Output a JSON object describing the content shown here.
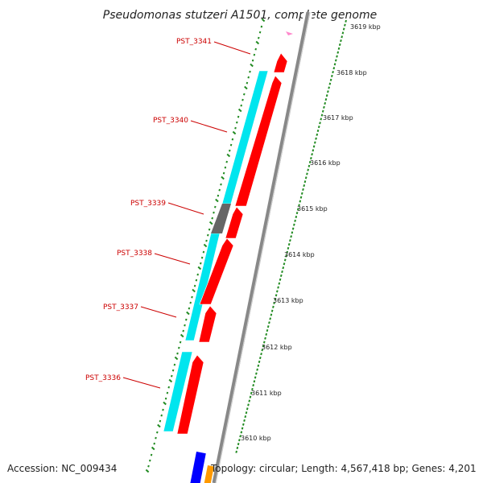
{
  "title": "Pseudomonas stutzeri A1501, complete genome",
  "accession": "Accession: NC_009434",
  "topology": "Topology: circular; Length: 4,567,418 bp; Genes: 4,201",
  "ticks": [
    "3610 kbp",
    "3611 kbp",
    "3612 kbp",
    "3613 kbp",
    "3614 kbp",
    "3615 kbp",
    "3616 kbp",
    "3617 kbp",
    "3618 kbp",
    "3619 kbp"
  ],
  "genes": [
    "PST_3336",
    "PST_3337",
    "PST_3338",
    "PST_3339",
    "PST_3340",
    "PST_3341"
  ],
  "colors": {
    "forward_cds": "#ff0000",
    "cyan_track": "#00e5ee",
    "gray_segment": "#666666",
    "backbone": "#888888",
    "tick_dots": "#228b22",
    "label_red": "#cc0000",
    "blue_feature": "#0000ff",
    "orange_feature": "#ff9900",
    "pink_feature": "#ff88cc"
  }
}
